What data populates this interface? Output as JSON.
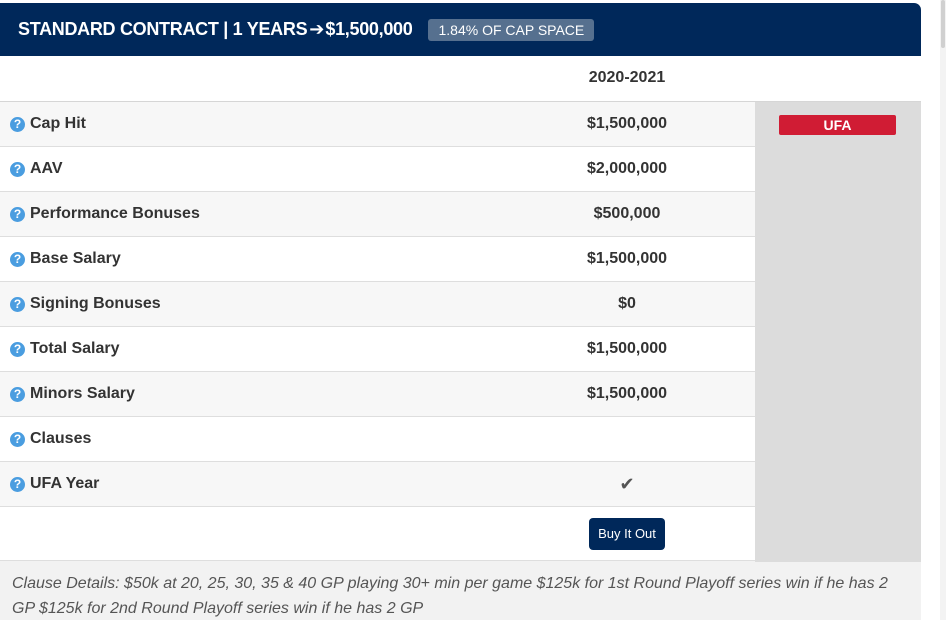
{
  "header": {
    "title": "STANDARD CONTRACT | 1 YEARS",
    "arrow": "➔",
    "amount": "$1,500,000",
    "cap_badge": "1.84% OF CAP SPACE"
  },
  "season": "2020-2021",
  "status_badge": "UFA",
  "rows": [
    {
      "label": "Cap Hit",
      "value": "$1,500,000"
    },
    {
      "label": "AAV",
      "value": "$2,000,000"
    },
    {
      "label": "Performance Bonuses",
      "value": "$500,000"
    },
    {
      "label": "Base Salary",
      "value": "$1,500,000"
    },
    {
      "label": "Signing Bonuses",
      "value": "$0"
    },
    {
      "label": "Total Salary",
      "value": "$1,500,000"
    },
    {
      "label": "Minors Salary",
      "value": "$1,500,000"
    },
    {
      "label": "Clauses",
      "value": ""
    },
    {
      "label": "UFA Year",
      "value": "✔"
    }
  ],
  "help_icon": "?",
  "buyout_label": "Buy It Out",
  "clause_details": "Clause Details: $50k at 20, 25, 30, 35 & 40 GP playing 30+ min per game $125k for 1st Round Playoff series win if he has 2 GP $125k for 2nd Round Playoff series win if he has 2 GP",
  "colors": {
    "header_bg": "#00285a",
    "badge_red": "#d01c34",
    "help_blue": "#4a9de0"
  }
}
